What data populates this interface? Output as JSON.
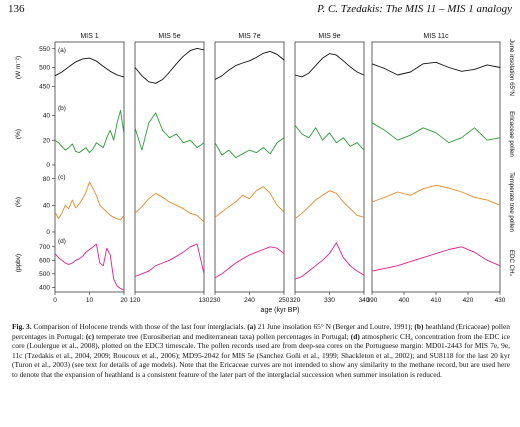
{
  "header": {
    "page_number": "136",
    "running_title": "P. C. Tzedakis: The MIS 11 – MIS 1 analogy"
  },
  "figure": {
    "xlabel": "age (kyr BP)",
    "colors": {
      "insolation": "#111111",
      "ericaceae": "#2e9a3a",
      "temperate": "#e88a2a",
      "ch4": "#e0208a"
    },
    "panel_letters": [
      "(a)",
      "(b)",
      "(c)",
      "(d)"
    ],
    "y_axis": {
      "insolation": {
        "label": "(W m⁻²)",
        "range": [
          440,
          560
        ],
        "ticks": [
          "550",
          "500",
          "450"
        ]
      },
      "ericaceae": {
        "label": "(%)",
        "range": [
          0,
          50
        ],
        "ticks": [
          "40",
          "20",
          "0"
        ]
      },
      "temperate": {
        "label": "(%)",
        "range": [
          0,
          90
        ],
        "ticks": [
          "80",
          "40",
          "0"
        ]
      },
      "ch4": {
        "label": "(ppbv)",
        "range": [
          380,
          780
        ],
        "ticks": [
          "700",
          "600",
          "500",
          "400"
        ]
      }
    },
    "right_labels": [
      "June insolation 65°N",
      "Ericaceae pollen",
      "Temperate tree pollen",
      "EDC CH₄"
    ],
    "columns": [
      {
        "title": "MIS 1",
        "xlim": [
          0,
          20
        ],
        "ticks": [
          "0",
          "10",
          "20"
        ]
      },
      {
        "title": "MIS 5e",
        "xlim": [
          120,
          130
        ],
        "ticks": [
          "120",
          "130"
        ]
      },
      {
        "title": "MIS 7e",
        "xlim": [
          230,
          250
        ],
        "ticks": [
          "230",
          "240",
          "250"
        ]
      },
      {
        "title": "MIS 9e",
        "xlim": [
          320,
          340
        ],
        "ticks": [
          "320",
          "330",
          "340"
        ]
      },
      {
        "title": "MIS 11c",
        "xlim": [
          390,
          430
        ],
        "ticks": [
          "390",
          "400",
          "410",
          "420",
          "430"
        ]
      }
    ]
  },
  "chart_data": [
    {
      "type": "line",
      "panel": "(a)",
      "series_label": "June insolation 65°N",
      "ylabel": "(W m⁻²)",
      "ylim": [
        440,
        560
      ],
      "columns": [
        {
          "x": [
            0,
            2,
            4,
            6,
            8,
            10,
            12,
            14,
            16,
            18,
            20
          ],
          "y": [
            478,
            488,
            502,
            515,
            523,
            525,
            517,
            503,
            490,
            480,
            475
          ]
        },
        {
          "x": [
            120,
            121,
            122,
            123,
            124,
            125,
            126,
            127,
            128,
            129,
            130
          ],
          "y": [
            500,
            478,
            462,
            458,
            468,
            488,
            510,
            530,
            545,
            551,
            547
          ]
        },
        {
          "x": [
            230,
            232,
            234,
            236,
            238,
            240,
            242,
            244,
            246,
            248,
            250
          ],
          "y": [
            468,
            478,
            493,
            505,
            512,
            518,
            527,
            538,
            543,
            535,
            520
          ]
        },
        {
          "x": [
            320,
            322,
            324,
            326,
            328,
            330,
            332,
            334,
            336,
            338,
            340
          ],
          "y": [
            480,
            475,
            485,
            505,
            525,
            537,
            533,
            518,
            502,
            488,
            480
          ]
        },
        {
          "x": [
            390,
            394,
            398,
            402,
            406,
            410,
            414,
            418,
            422,
            426,
            430
          ],
          "y": [
            510,
            497,
            480,
            488,
            510,
            514,
            500,
            490,
            495,
            507,
            500
          ]
        }
      ]
    },
    {
      "type": "line",
      "panel": "(b)",
      "series_label": "Ericaceae pollen",
      "ylabel": "(%)",
      "ylim": [
        0,
        50
      ],
      "columns": [
        {
          "x": [
            0,
            1,
            2,
            3,
            4,
            5,
            6,
            7,
            8,
            9,
            10,
            11,
            12,
            13,
            14,
            15,
            16,
            17,
            18,
            19,
            20
          ],
          "y": [
            20,
            18,
            15,
            12,
            14,
            17,
            11,
            10,
            12,
            14,
            10,
            13,
            18,
            16,
            14,
            22,
            28,
            20,
            34,
            44,
            25
          ]
        },
        {
          "x": [
            120,
            121,
            122,
            123,
            124,
            125,
            126,
            127,
            128,
            129,
            130
          ],
          "y": [
            30,
            12,
            34,
            42,
            28,
            22,
            25,
            18,
            20,
            14,
            18
          ]
        },
        {
          "x": [
            230,
            232,
            234,
            236,
            238,
            240,
            242,
            244,
            246,
            248,
            250
          ],
          "y": [
            18,
            8,
            12,
            6,
            9,
            12,
            10,
            14,
            9,
            18,
            22
          ]
        },
        {
          "x": [
            320,
            322,
            324,
            326,
            328,
            330,
            332,
            334,
            336,
            338,
            340
          ],
          "y": [
            32,
            25,
            22,
            30,
            20,
            26,
            18,
            22,
            15,
            18,
            12
          ]
        },
        {
          "x": [
            390,
            394,
            398,
            402,
            406,
            410,
            414,
            418,
            422,
            426,
            430
          ],
          "y": [
            34,
            28,
            20,
            24,
            30,
            26,
            18,
            22,
            30,
            20,
            22
          ]
        }
      ]
    },
    {
      "type": "line",
      "panel": "(c)",
      "series_label": "Temperate tree pollen",
      "ylabel": "(%)",
      "ylim": [
        0,
        90
      ],
      "columns": [
        {
          "x": [
            0,
            1,
            2,
            3,
            4,
            5,
            6,
            7,
            8,
            9,
            10,
            11,
            12,
            13,
            14,
            15,
            16,
            17,
            18,
            19,
            20
          ],
          "y": [
            30,
            20,
            28,
            40,
            35,
            48,
            36,
            42,
            50,
            60,
            75,
            65,
            55,
            40,
            35,
            30,
            25,
            22,
            20,
            18,
            25
          ]
        },
        {
          "x": [
            120,
            121,
            122,
            123,
            124,
            125,
            126,
            127,
            128,
            129,
            130
          ],
          "y": [
            28,
            38,
            50,
            58,
            52,
            45,
            40,
            35,
            28,
            25,
            15
          ]
        },
        {
          "x": [
            230,
            232,
            234,
            236,
            238,
            240,
            242,
            244,
            246,
            248,
            250
          ],
          "y": [
            22,
            30,
            38,
            45,
            55,
            50,
            62,
            68,
            58,
            40,
            30
          ]
        },
        {
          "x": [
            320,
            322,
            324,
            326,
            328,
            330,
            332,
            334,
            336,
            338,
            340
          ],
          "y": [
            20,
            28,
            38,
            48,
            55,
            62,
            58,
            45,
            35,
            25,
            22
          ]
        },
        {
          "x": [
            390,
            394,
            398,
            402,
            406,
            410,
            414,
            418,
            422,
            426,
            430
          ],
          "y": [
            45,
            52,
            60,
            55,
            65,
            70,
            66,
            60,
            52,
            48,
            40
          ]
        }
      ]
    },
    {
      "type": "line",
      "panel": "(d)",
      "series_label": "EDC CH₄",
      "ylabel": "(ppbv)",
      "ylim": [
        380,
        780
      ],
      "columns": [
        {
          "x": [
            0,
            1,
            2,
            3,
            4,
            5,
            6,
            7,
            8,
            9,
            10,
            11,
            12,
            13,
            14,
            15,
            16,
            17,
            18,
            19,
            20
          ],
          "y": [
            650,
            620,
            600,
            580,
            570,
            580,
            600,
            610,
            630,
            660,
            680,
            700,
            720,
            580,
            560,
            690,
            640,
            460,
            410,
            390,
            380
          ]
        },
        {
          "x": [
            120,
            121,
            122,
            123,
            124,
            125,
            126,
            127,
            128,
            129,
            130
          ],
          "y": [
            480,
            500,
            520,
            560,
            580,
            600,
            630,
            660,
            700,
            720,
            500
          ]
        },
        {
          "x": [
            230,
            232,
            234,
            236,
            238,
            240,
            242,
            244,
            246,
            248,
            250
          ],
          "y": [
            470,
            500,
            540,
            580,
            610,
            640,
            660,
            680,
            700,
            690,
            650
          ]
        },
        {
          "x": [
            320,
            322,
            324,
            326,
            328,
            330,
            332,
            334,
            336,
            338,
            340
          ],
          "y": [
            460,
            480,
            520,
            560,
            600,
            650,
            730,
            620,
            560,
            520,
            490
          ]
        },
        {
          "x": [
            390,
            394,
            398,
            402,
            406,
            410,
            414,
            418,
            422,
            426,
            430
          ],
          "y": [
            520,
            540,
            560,
            590,
            620,
            650,
            680,
            700,
            660,
            600,
            560
          ]
        }
      ]
    }
  ],
  "caption": {
    "label": "Fig. 3.",
    "intro": "Comparison of Holocene trends with those of the last four interglacials.",
    "a_label": "(a)",
    "a_text": "21 June insolation 65° N (Berger and Loutre, 1991);",
    "b_label": "(b)",
    "b_text": "heathland (Ericaceae) pollen percentages in Portugal;",
    "c_label": "(c)",
    "c_text": "temperate tree (Eurosiberian and mediterranean taxa) pollen percentages in Portugal;",
    "d_label": "(d)",
    "d_text": "atmospheric CH₄ concentration from the EDC ice core (Loulergue et al., 2008), plotted on the EDC3 timescale. The pollen records used are from deep-sea cores on the Portuguese margin: MD01-2443 for MIS 7e, 9e, 11c (Tzedakis et al., 2004, 2009; Roucoux et al., 2006); MD95-2042 for MIS 5e (Sanchez Goñi et al., 1999; Shackleton et al., 2002); and SU8118 for the last 20 kyr (Turon et al., 2003) (see text for details of age models). Note that the Ericaceae curves are not intended to show any similarity to the methane record, but are used here to denote that the expansion of heathland is a consistent feature of the later part of the interglacial succession when summer insolation is reduced."
  }
}
